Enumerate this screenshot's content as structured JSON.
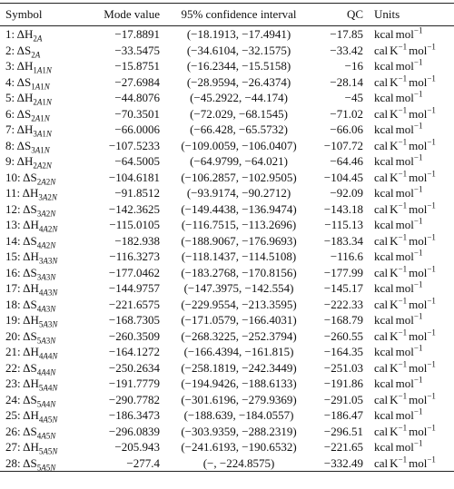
{
  "table": {
    "header": [
      "Symbol",
      "Mode value",
      "95% confidence interval",
      "QC",
      "Units"
    ],
    "rows": [
      [
        [
          "1: ΔH",
          "2A"
        ],
        "−17.8891",
        "(−18.1913, −17.4941)",
        "−17.85",
        [
          [
            "kcal"
          ],
          [
            "mol",
            "−1"
          ]
        ]
      ],
      [
        [
          "2: ΔS",
          "2A"
        ],
        "−33.5475",
        "(−34.6104, −32.1575)",
        "−33.42",
        [
          [
            "cal"
          ],
          [
            "K",
            "−1"
          ],
          [
            "mol",
            "−1"
          ]
        ]
      ],
      [
        [
          "3: ΔH",
          "1A1N"
        ],
        "−15.8751",
        "(−16.2344, −15.5158)",
        "−16",
        [
          [
            "kcal"
          ],
          [
            "mol",
            "−1"
          ]
        ]
      ],
      [
        [
          "4: ΔS",
          "1A1N"
        ],
        "−27.6984",
        "(−28.9594, −26.4374)",
        "−28.14",
        [
          [
            "cal"
          ],
          [
            "K",
            "−1"
          ],
          [
            "mol",
            "−1"
          ]
        ]
      ],
      [
        [
          "5: ΔH",
          "2A1N"
        ],
        "−44.8076",
        "(−45.2922, −44.174)",
        "−45",
        [
          [
            "kcal"
          ],
          [
            "mol",
            "−1"
          ]
        ]
      ],
      [
        [
          "6: ΔS",
          "2A1N"
        ],
        "−70.3501",
        "(−72.029, −68.1545)",
        "−71.02",
        [
          [
            "cal"
          ],
          [
            "K",
            "−1"
          ],
          [
            "mol",
            "−1"
          ]
        ]
      ],
      [
        [
          "7: ΔH",
          "3A1N"
        ],
        "−66.0006",
        "(−66.428, −65.5732)",
        "−66.06",
        [
          [
            "kcal"
          ],
          [
            "mol",
            "−1"
          ]
        ]
      ],
      [
        [
          "8: ΔS",
          "3A1N"
        ],
        "−107.5233",
        "(−109.0059, −106.0407)",
        "−107.72",
        [
          [
            "cal"
          ],
          [
            "K",
            "−1"
          ],
          [
            "mol",
            "−1"
          ]
        ]
      ],
      [
        [
          "9: ΔH",
          "2A2N"
        ],
        "−64.5005",
        "(−64.9799, −64.021)",
        "−64.46",
        [
          [
            "kcal"
          ],
          [
            "mol",
            "−1"
          ]
        ]
      ],
      [
        [
          "10: ΔS",
          "2A2N"
        ],
        "−104.6181",
        "(−106.2857, −102.9505)",
        "−104.45",
        [
          [
            "cal"
          ],
          [
            "K",
            "−1"
          ],
          [
            "mol",
            "−1"
          ]
        ]
      ],
      [
        [
          "11: ΔH",
          "3A2N"
        ],
        "−91.8512",
        "(−93.9174, −90.2712)",
        "−92.09",
        [
          [
            "kcal"
          ],
          [
            "mol",
            "−1"
          ]
        ]
      ],
      [
        [
          "12: ΔS",
          "3A2N"
        ],
        "−142.3625",
        "(−149.4438, −136.9474)",
        "−143.18",
        [
          [
            "cal"
          ],
          [
            "K",
            "−1"
          ],
          [
            "mol",
            "−1"
          ]
        ]
      ],
      [
        [
          "13: ΔH",
          "4A2N"
        ],
        "−115.0105",
        "(−116.7515, −113.2696)",
        "−115.13",
        [
          [
            "kcal"
          ],
          [
            "mol",
            "−1"
          ]
        ]
      ],
      [
        [
          "14: ΔS",
          "4A2N"
        ],
        "−182.938",
        "(−188.9067, −176.9693)",
        "−183.34",
        [
          [
            "cal"
          ],
          [
            "K",
            "−1"
          ],
          [
            "mol",
            "−1"
          ]
        ]
      ],
      [
        [
          "15: ΔH",
          "3A3N"
        ],
        "−116.3273",
        "(−118.1437, −114.5108)",
        "−116.6",
        [
          [
            "kcal"
          ],
          [
            "mol",
            "−1"
          ]
        ]
      ],
      [
        [
          "16: ΔS",
          "3A3N"
        ],
        "−177.0462",
        "(−183.2768, −170.8156)",
        "−177.99",
        [
          [
            "cal"
          ],
          [
            "K",
            "−1"
          ],
          [
            "mol",
            "−1"
          ]
        ]
      ],
      [
        [
          "17: ΔH",
          "4A3N"
        ],
        "−144.9757",
        "(−147.3975, −142.554)",
        "−145.17",
        [
          [
            "kcal"
          ],
          [
            "mol",
            "−1"
          ]
        ]
      ],
      [
        [
          "18: ΔS",
          "4A3N"
        ],
        "−221.6575",
        "(−229.9554, −213.3595)",
        "−222.33",
        [
          [
            "cal"
          ],
          [
            "K",
            "−1"
          ],
          [
            "mol",
            "−1"
          ]
        ]
      ],
      [
        [
          "19: ΔH",
          "5A3N"
        ],
        "−168.7305",
        "(−171.0579, −166.4031)",
        "−168.79",
        [
          [
            "kcal"
          ],
          [
            "mol",
            "−1"
          ]
        ]
      ],
      [
        [
          "20: ΔS",
          "5A3N"
        ],
        "−260.3509",
        "(−268.3225, −252.3794)",
        "−260.55",
        [
          [
            "cal"
          ],
          [
            "K",
            "−1"
          ],
          [
            "mol",
            "−1"
          ]
        ]
      ],
      [
        [
          "21: ΔH",
          "4A4N"
        ],
        "−164.1272",
        "(−166.4394, −161.815)",
        "−164.35",
        [
          [
            "kcal"
          ],
          [
            "mol",
            "−1"
          ]
        ]
      ],
      [
        [
          "22: ΔS",
          "4A4N"
        ],
        "−250.2634",
        "(−258.1819, −242.3449)",
        "−251.03",
        [
          [
            "cal"
          ],
          [
            "K",
            "−1"
          ],
          [
            "mol",
            "−1"
          ]
        ]
      ],
      [
        [
          "23: ΔH",
          "5A4N"
        ],
        "−191.7779",
        "(−194.9426, −188.6133)",
        "−191.86",
        [
          [
            "kcal"
          ],
          [
            "mol",
            "−1"
          ]
        ]
      ],
      [
        [
          "24: ΔS",
          "5A4N"
        ],
        "−290.7782",
        "(−301.6196, −279.9369)",
        "−291.05",
        [
          [
            "cal"
          ],
          [
            "K",
            "−1"
          ],
          [
            "mol",
            "−1"
          ]
        ]
      ],
      [
        [
          "25: ΔH",
          "4A5N"
        ],
        "−186.3473",
        "(−188.639, −184.0557)",
        "−186.47",
        [
          [
            "kcal"
          ],
          [
            "mol",
            "−1"
          ]
        ]
      ],
      [
        [
          "26: ΔS",
          "4A5N"
        ],
        "−296.0839",
        "(−303.9359, −288.2319)",
        "−296.51",
        [
          [
            "cal"
          ],
          [
            "K",
            "−1"
          ],
          [
            "mol",
            "−1"
          ]
        ]
      ],
      [
        [
          "27: ΔH",
          "5A5N"
        ],
        "−205.943",
        "(−241.6193, −190.6532)",
        "−221.65",
        [
          [
            "kcal"
          ],
          [
            "mol",
            "−1"
          ]
        ]
      ],
      [
        [
          "28: ΔS",
          "5A5N"
        ],
        "−277.4",
        "(−, −224.8575)",
        "−332.49",
        [
          [
            "cal"
          ],
          [
            "K",
            "−1"
          ],
          [
            "mol",
            "−1"
          ]
        ]
      ]
    ]
  }
}
